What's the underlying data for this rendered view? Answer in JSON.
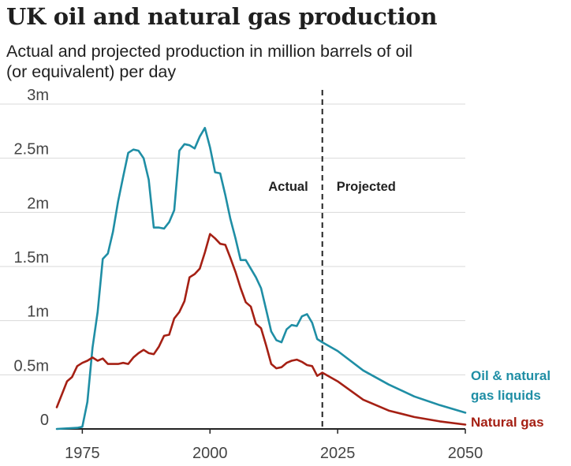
{
  "chart_data": {
    "type": "line",
    "title": "UK oil and natural gas production",
    "subtitle": "Actual and projected production in million barrels of oil (or equivalent) per day",
    "xlabel": "",
    "ylabel": "",
    "xlim": [
      1970,
      2050
    ],
    "ylim": [
      0,
      3
    ],
    "x_ticks": [
      1975,
      2000,
      2025,
      2050
    ],
    "y_ticks": [
      0,
      0.5,
      1,
      1.5,
      2,
      2.5,
      3
    ],
    "y_tick_labels": [
      "0",
      "0.5m",
      "1m",
      "1.5m",
      "2m",
      "2.5m",
      "3m"
    ],
    "grid": "horizontal",
    "divider_year": 2022,
    "annotations": [
      "Actual",
      "Projected"
    ],
    "series": [
      {
        "name": "Oil & natural gas liquids",
        "label_lines": [
          "Oil & natural",
          "gas liquids"
        ],
        "color": "#1f8ea5",
        "points": [
          [
            1970,
            0.0
          ],
          [
            1974,
            0.01
          ],
          [
            1975,
            0.02
          ],
          [
            1976,
            0.25
          ],
          [
            1977,
            0.75
          ],
          [
            1978,
            1.08
          ],
          [
            1979,
            1.57
          ],
          [
            1980,
            1.62
          ],
          [
            1981,
            1.82
          ],
          [
            1982,
            2.1
          ],
          [
            1983,
            2.33
          ],
          [
            1984,
            2.55
          ],
          [
            1985,
            2.58
          ],
          [
            1986,
            2.57
          ],
          [
            1987,
            2.5
          ],
          [
            1988,
            2.3
          ],
          [
            1989,
            1.86
          ],
          [
            1990,
            1.86
          ],
          [
            1991,
            1.85
          ],
          [
            1992,
            1.91
          ],
          [
            1993,
            2.02
          ],
          [
            1994,
            2.57
          ],
          [
            1995,
            2.63
          ],
          [
            1996,
            2.62
          ],
          [
            1997,
            2.59
          ],
          [
            1998,
            2.7
          ],
          [
            1999,
            2.78
          ],
          [
            2000,
            2.6
          ],
          [
            2001,
            2.37
          ],
          [
            2002,
            2.36
          ],
          [
            2003,
            2.16
          ],
          [
            2004,
            1.94
          ],
          [
            2005,
            1.76
          ],
          [
            2006,
            1.56
          ],
          [
            2007,
            1.56
          ],
          [
            2008,
            1.48
          ],
          [
            2009,
            1.4
          ],
          [
            2010,
            1.3
          ],
          [
            2011,
            1.1
          ],
          [
            2012,
            0.9
          ],
          [
            2013,
            0.82
          ],
          [
            2014,
            0.8
          ],
          [
            2015,
            0.92
          ],
          [
            2016,
            0.96
          ],
          [
            2017,
            0.95
          ],
          [
            2018,
            1.04
          ],
          [
            2019,
            1.06
          ],
          [
            2020,
            0.98
          ],
          [
            2021,
            0.83
          ],
          [
            2022,
            0.8
          ],
          [
            2025,
            0.72
          ],
          [
            2030,
            0.54
          ],
          [
            2035,
            0.41
          ],
          [
            2040,
            0.3
          ],
          [
            2045,
            0.22
          ],
          [
            2050,
            0.15
          ]
        ]
      },
      {
        "name": "Natural gas",
        "label_lines": [
          "Natural gas"
        ],
        "color": "#a52014",
        "points": [
          [
            1970,
            0.2
          ],
          [
            1971,
            0.32
          ],
          [
            1972,
            0.44
          ],
          [
            1973,
            0.48
          ],
          [
            1974,
            0.58
          ],
          [
            1975,
            0.61
          ],
          [
            1976,
            0.63
          ],
          [
            1977,
            0.66
          ],
          [
            1978,
            0.63
          ],
          [
            1979,
            0.65
          ],
          [
            1980,
            0.6
          ],
          [
            1981,
            0.6
          ],
          [
            1982,
            0.6
          ],
          [
            1983,
            0.61
          ],
          [
            1984,
            0.6
          ],
          [
            1985,
            0.66
          ],
          [
            1986,
            0.7
          ],
          [
            1987,
            0.73
          ],
          [
            1988,
            0.7
          ],
          [
            1989,
            0.69
          ],
          [
            1990,
            0.76
          ],
          [
            1991,
            0.86
          ],
          [
            1992,
            0.87
          ],
          [
            1993,
            1.02
          ],
          [
            1994,
            1.08
          ],
          [
            1995,
            1.18
          ],
          [
            1996,
            1.4
          ],
          [
            1997,
            1.43
          ],
          [
            1998,
            1.48
          ],
          [
            1999,
            1.63
          ],
          [
            2000,
            1.8
          ],
          [
            2001,
            1.76
          ],
          [
            2002,
            1.71
          ],
          [
            2003,
            1.7
          ],
          [
            2004,
            1.58
          ],
          [
            2005,
            1.45
          ],
          [
            2006,
            1.3
          ],
          [
            2007,
            1.17
          ],
          [
            2008,
            1.13
          ],
          [
            2009,
            0.97
          ],
          [
            2010,
            0.93
          ],
          [
            2011,
            0.77
          ],
          [
            2012,
            0.6
          ],
          [
            2013,
            0.56
          ],
          [
            2014,
            0.57
          ],
          [
            2015,
            0.61
          ],
          [
            2016,
            0.63
          ],
          [
            2017,
            0.64
          ],
          [
            2018,
            0.62
          ],
          [
            2019,
            0.59
          ],
          [
            2020,
            0.58
          ],
          [
            2021,
            0.49
          ],
          [
            2022,
            0.52
          ],
          [
            2025,
            0.44
          ],
          [
            2030,
            0.27
          ],
          [
            2035,
            0.17
          ],
          [
            2040,
            0.11
          ],
          [
            2045,
            0.07
          ],
          [
            2050,
            0.04
          ]
        ]
      }
    ]
  }
}
